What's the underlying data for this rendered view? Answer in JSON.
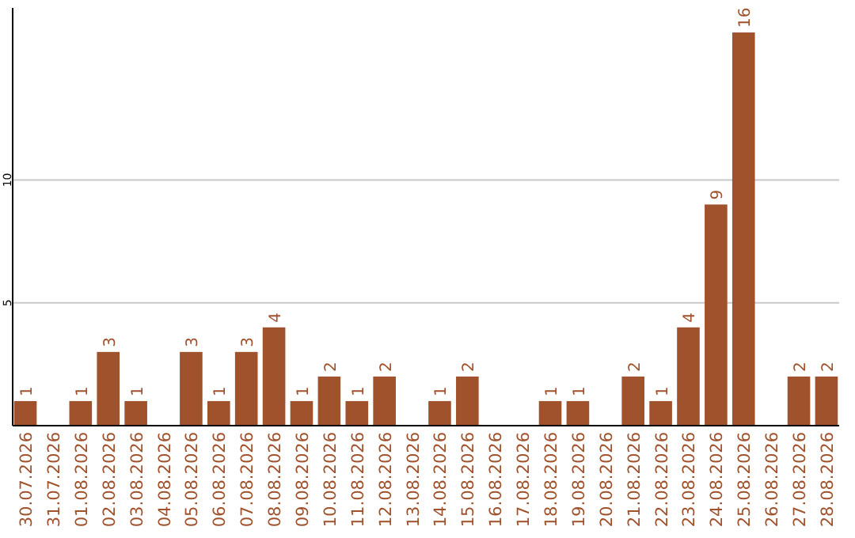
{
  "chart_data": {
    "type": "bar",
    "categories": [
      "30.07.2026",
      "31.07.2026",
      "01.08.2026",
      "02.08.2026",
      "03.08.2026",
      "04.08.2026",
      "05.08.2026",
      "06.08.2026",
      "07.08.2026",
      "08.08.2026",
      "09.08.2026",
      "10.08.2026",
      "11.08.2026",
      "12.08.2026",
      "13.08.2026",
      "14.08.2026",
      "15.08.2026",
      "16.08.2026",
      "17.08.2026",
      "18.08.2026",
      "19.08.2026",
      "20.08.2026",
      "21.08.2026",
      "22.08.2026",
      "23.08.2026",
      "24.08.2026",
      "25.08.2026",
      "26.08.2026",
      "27.08.2026",
      "28.08.2026"
    ],
    "values": [
      1,
      null,
      1,
      3,
      1,
      null,
      3,
      1,
      3,
      4,
      1,
      2,
      1,
      2,
      null,
      1,
      2,
      null,
      null,
      1,
      1,
      null,
      2,
      1,
      4,
      9,
      16,
      null,
      2,
      2
    ],
    "color": "#a0522d",
    "ylim": [
      0,
      17
    ],
    "yticks": [
      5,
      10
    ],
    "grid": "y",
    "data_labels": true
  }
}
